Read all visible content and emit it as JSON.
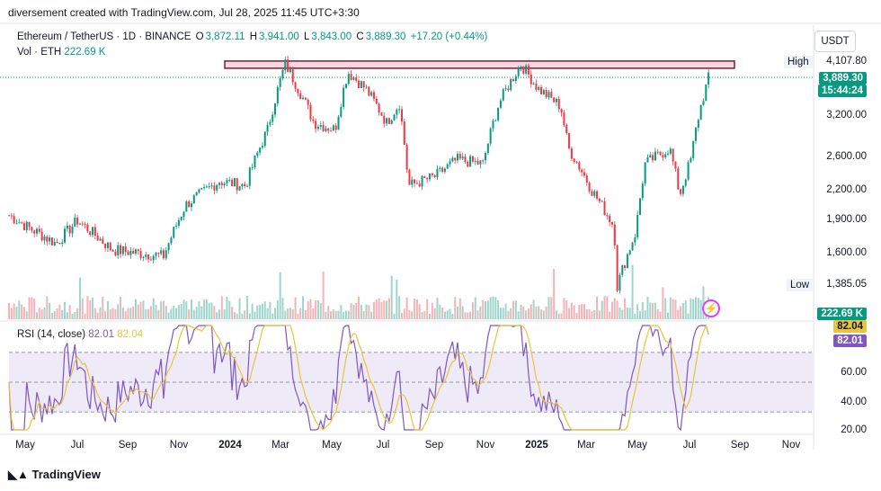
{
  "header": {
    "credit": "diversement created with TradingView.com, Jul 28, 2025 11:45 UTC+3:30"
  },
  "legend": {
    "symbol": "Ethereum / TetherUS · 1D · BINANCE",
    "o_label": "O",
    "o_value": "3,872.11",
    "h_label": "H",
    "h_value": "3,941.00",
    "l_label": "L",
    "l_value": "3,843.00",
    "c_label": "C",
    "c_value": "3,889.30",
    "change": "+17.20 (+0.44%)",
    "vol_label": "Vol · ETH",
    "vol_value": "222.69 K"
  },
  "price_axis": {
    "currency": "USDT",
    "ticks": [
      "3,200.00",
      "2,600.00",
      "2,200.00",
      "1,900.00",
      "1,600.00"
    ],
    "high_label": "High",
    "high_value": "4,107.80",
    "low_label": "Low",
    "low_value": "1,385.05",
    "last_price": "3,889.30",
    "countdown": "15:44:24",
    "vol_tag": "222.69 K"
  },
  "rsi": {
    "label": "RSI (14, close)",
    "rsi_value": "82.01",
    "sma_value": "82.04",
    "ticks": [
      "60.00",
      "40.00",
      "20.00"
    ]
  },
  "x_axis": {
    "ticks": [
      {
        "label": "May",
        "bold": false
      },
      {
        "label": "Jul",
        "bold": false
      },
      {
        "label": "Sep",
        "bold": false
      },
      {
        "label": "Nov",
        "bold": false
      },
      {
        "label": "2024",
        "bold": true
      },
      {
        "label": "Mar",
        "bold": false
      },
      {
        "label": "May",
        "bold": false
      },
      {
        "label": "Jul",
        "bold": false
      },
      {
        "label": "Sep",
        "bold": false
      },
      {
        "label": "Nov",
        "bold": false
      },
      {
        "label": "2025",
        "bold": true
      },
      {
        "label": "Mar",
        "bold": false
      },
      {
        "label": "May",
        "bold": false
      },
      {
        "label": "Jul",
        "bold": false
      },
      {
        "label": "Sep",
        "bold": false
      },
      {
        "label": "Nov",
        "bold": false
      }
    ]
  },
  "footer": {
    "logo_text": "TradingView"
  },
  "colors": {
    "up": "#089981",
    "down": "#f23645",
    "rsi": "#7e57c2",
    "sma": "#e8c53a",
    "zone_fill": "#f8d7e2",
    "zone_border": "#7b1c2e"
  },
  "chart_data": {
    "type": "line",
    "title": "Ethereum / TetherUS · 1D · BINANCE",
    "x_range": [
      "2023-05",
      "2025-07-28"
    ],
    "anchors": [
      {
        "x": "2023-04-20",
        "y": 1950
      },
      {
        "x": "2023-05-10",
        "y": 1850
      },
      {
        "x": "2023-06-15",
        "y": 1700
      },
      {
        "x": "2023-07-10",
        "y": 1900
      },
      {
        "x": "2023-08-20",
        "y": 1650
      },
      {
        "x": "2023-10-20",
        "y": 1600
      },
      {
        "x": "2023-11-15",
        "y": 2050
      },
      {
        "x": "2023-12-25",
        "y": 2300
      },
      {
        "x": "2024-01-25",
        "y": 2250
      },
      {
        "x": "2024-02-20",
        "y": 2950
      },
      {
        "x": "2024-03-12",
        "y": 4050
      },
      {
        "x": "2024-04-15",
        "y": 3050
      },
      {
        "x": "2024-05-10",
        "y": 2950
      },
      {
        "x": "2024-05-25",
        "y": 3900
      },
      {
        "x": "2024-06-15",
        "y": 3600
      },
      {
        "x": "2024-07-10",
        "y": 3050
      },
      {
        "x": "2024-07-25",
        "y": 3350
      },
      {
        "x": "2024-08-05",
        "y": 2250
      },
      {
        "x": "2024-09-05",
        "y": 2350
      },
      {
        "x": "2024-10-01",
        "y": 2550
      },
      {
        "x": "2024-11-01",
        "y": 2500
      },
      {
        "x": "2024-11-20",
        "y": 3350
      },
      {
        "x": "2024-12-16",
        "y": 4050
      },
      {
        "x": "2025-01-05",
        "y": 3600
      },
      {
        "x": "2025-02-01",
        "y": 3300
      },
      {
        "x": "2025-02-10",
        "y": 2700
      },
      {
        "x": "2025-03-10",
        "y": 2200
      },
      {
        "x": "2025-04-05",
        "y": 1850
      },
      {
        "x": "2025-04-09",
        "y": 1385
      },
      {
        "x": "2025-05-01",
        "y": 1800
      },
      {
        "x": "2025-05-12",
        "y": 2500
      },
      {
        "x": "2025-06-10",
        "y": 2700
      },
      {
        "x": "2025-06-22",
        "y": 2150
      },
      {
        "x": "2025-07-05",
        "y": 2550
      },
      {
        "x": "2025-07-15",
        "y": 3200
      },
      {
        "x": "2025-07-28",
        "y": 3889
      }
    ],
    "resistance_zone": [
      4000,
      4110
    ],
    "high": 4107.8,
    "low": 1385.05,
    "last": 3889.3,
    "rsi_last": 82.01,
    "rsi_sma_last": 82.04,
    "rsi_bands": [
      70,
      50,
      30
    ]
  }
}
